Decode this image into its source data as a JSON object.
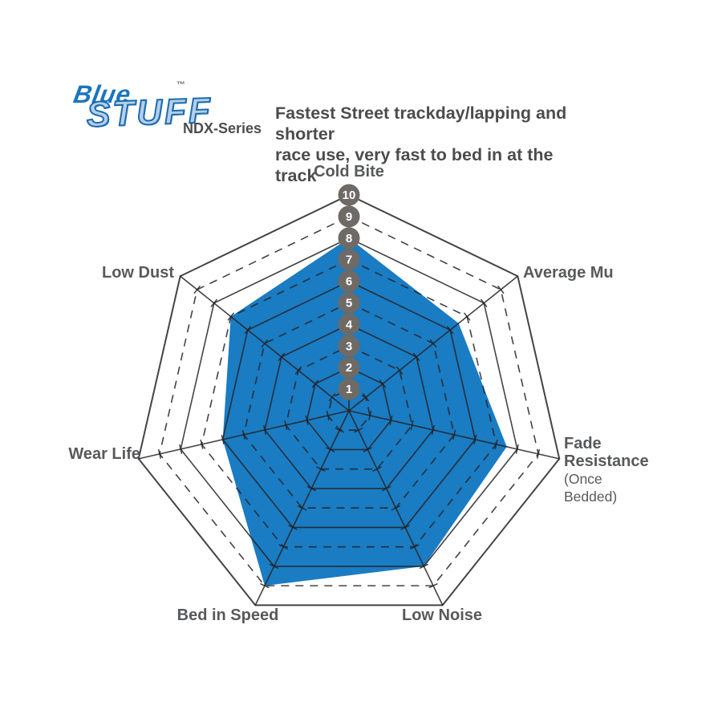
{
  "logo": {
    "word1": "Blue",
    "word2": "STUFF",
    "trademark": "™",
    "series": "NDX-Series"
  },
  "title": {
    "line1": "Fastest Street trackday/lapping and shorter",
    "line2": "race use, very fast to bed in at the track"
  },
  "chart_data": {
    "type": "radar",
    "title": "",
    "scale": {
      "min": 0,
      "max": 10,
      "ticks": [
        1,
        2,
        3,
        4,
        5,
        6,
        7,
        8,
        9,
        10
      ]
    },
    "grid": {
      "rings": 10,
      "even_rings": "solid",
      "odd_rings": "dashed",
      "spoke_ticks": true
    },
    "axes": [
      {
        "label": "Cold Bite",
        "value": 8
      },
      {
        "label": "Average Mu",
        "value": 6.5
      },
      {
        "label": "Fade Resistance",
        "sublabel": "(Once Bedded)",
        "value": 7.5
      },
      {
        "label": "Low Noise",
        "value": 8
      },
      {
        "label": "Bed in Speed",
        "value": 9
      },
      {
        "label": "Wear Life",
        "value": 6
      },
      {
        "label": "Low Dust",
        "value": 7
      }
    ],
    "colors": {
      "fill": "#1a7cc2",
      "grid": "#232126",
      "badge": "#6e6a66",
      "badge_text": "#ffffff",
      "label": "#58595b",
      "logo_blue": "#1b75bc",
      "logo_light_blue": "#b6cee9"
    }
  }
}
